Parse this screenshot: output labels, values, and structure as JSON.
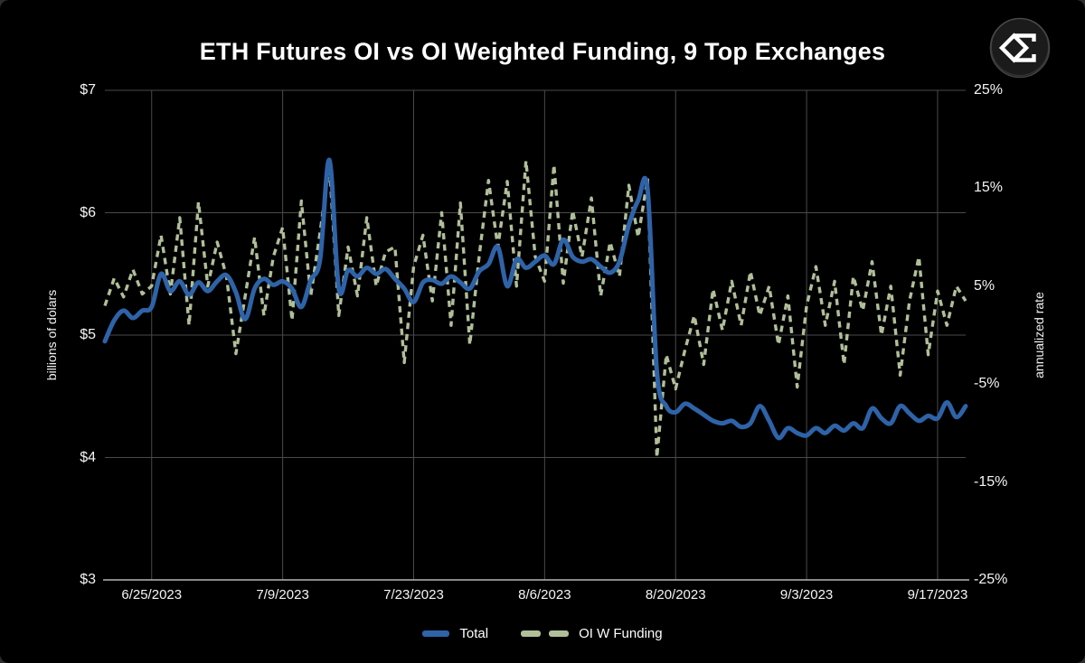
{
  "page": {
    "title": "ETH Futures OI vs OI Weighted Funding, 9 Top Exchanges",
    "logo_icon": "sigma-diamond-logo-icon",
    "background_color": "#000000"
  },
  "chart_data": {
    "type": "line",
    "title": "ETH Futures OI vs OI Weighted Funding, 9 Top Exchanges",
    "grid": true,
    "colors": {
      "total_line": "#2e63a8",
      "funding_line": "#b0bf99",
      "gridline": "#4a4a4a",
      "axis_line": "#b5b5b5",
      "text": "#ffffff"
    },
    "y_left": {
      "label": "billions of dolars",
      "tick_labels": [
        "$7",
        "$6",
        "$5",
        "$4",
        "$3"
      ],
      "tick_values": [
        7,
        6,
        5,
        4,
        3
      ],
      "min": 3,
      "max": 7
    },
    "y_right": {
      "label": "annualized rate",
      "tick_labels": [
        "25%",
        "15%",
        "5%",
        "-5%",
        "-15%",
        "-25%"
      ],
      "tick_values": [
        25,
        15,
        5,
        -5,
        -15,
        -25
      ],
      "min": -25,
      "max": 25
    },
    "x": {
      "start_date": "6/20/2023",
      "end_date": "9/20/2023",
      "total_days": 92,
      "tick_labels": [
        "6/25/2023",
        "7/9/2023",
        "7/23/2023",
        "8/6/2023",
        "8/20/2023",
        "9/3/2023",
        "9/17/2023"
      ],
      "tick_days": [
        5,
        19,
        33,
        47,
        61,
        75,
        89
      ]
    },
    "legend": {
      "position": "bottom-center"
    },
    "series": [
      {
        "name": "Total",
        "axis": "left",
        "style": "solid",
        "color": "#2e63a8",
        "unit": "billions USD",
        "values": [
          4.95,
          5.12,
          5.2,
          5.14,
          5.2,
          5.23,
          5.5,
          5.36,
          5.44,
          5.33,
          5.43,
          5.36,
          5.44,
          5.49,
          5.35,
          5.13,
          5.38,
          5.46,
          5.41,
          5.44,
          5.38,
          5.23,
          5.45,
          5.62,
          6.43,
          5.38,
          5.53,
          5.48,
          5.55,
          5.5,
          5.54,
          5.46,
          5.38,
          5.27,
          5.43,
          5.45,
          5.42,
          5.48,
          5.43,
          5.38,
          5.52,
          5.58,
          5.72,
          5.4,
          5.62,
          5.55,
          5.6,
          5.65,
          5.58,
          5.78,
          5.64,
          5.6,
          5.62,
          5.56,
          5.51,
          5.6,
          5.9,
          6.1,
          6.19,
          4.7,
          4.42,
          4.37,
          4.44,
          4.4,
          4.35,
          4.3,
          4.28,
          4.3,
          4.25,
          4.28,
          4.42,
          4.3,
          4.16,
          4.24,
          4.2,
          4.18,
          4.24,
          4.2,
          4.26,
          4.22,
          4.28,
          4.24,
          4.4,
          4.32,
          4.28,
          4.42,
          4.36,
          4.3,
          4.34,
          4.32,
          4.45,
          4.33,
          4.42
        ]
      },
      {
        "name": "OI W Funding",
        "axis": "right",
        "style": "dashed",
        "color": "#b0bf99",
        "unit": "percent annualized",
        "values": [
          3.0,
          5.8,
          3.9,
          6.7,
          4.2,
          5.0,
          10.2,
          4.2,
          12.0,
          1.0,
          13.6,
          5.0,
          9.5,
          6.0,
          -1.9,
          4.0,
          10.0,
          2.0,
          8.0,
          11.0,
          1.5,
          13.7,
          4.0,
          10.5,
          17.4,
          2.0,
          9.0,
          4.0,
          12.0,
          5.0,
          8.5,
          9.0,
          -2.8,
          7.0,
          10.2,
          3.5,
          12.5,
          1.0,
          13.5,
          -1.0,
          8.0,
          15.8,
          9.0,
          15.7,
          5.0,
          17.8,
          8.0,
          5.5,
          17.4,
          5.3,
          12.7,
          8.0,
          14.0,
          4.0,
          9.5,
          6.0,
          15.3,
          10.0,
          16.0,
          -12.5,
          -2.0,
          -5.5,
          -1.5,
          2.0,
          -3.0,
          4.7,
          0.5,
          5.5,
          1.0,
          6.5,
          2.0,
          5.0,
          -1.0,
          4.0,
          -5.3,
          3.0,
          7.0,
          1.0,
          5.5,
          -3.0,
          6.0,
          2.5,
          7.5,
          0.0,
          5.0,
          -4.1,
          3.5,
          8.0,
          -2.0,
          4.5,
          1.0,
          5.0,
          3.5
        ]
      }
    ]
  }
}
